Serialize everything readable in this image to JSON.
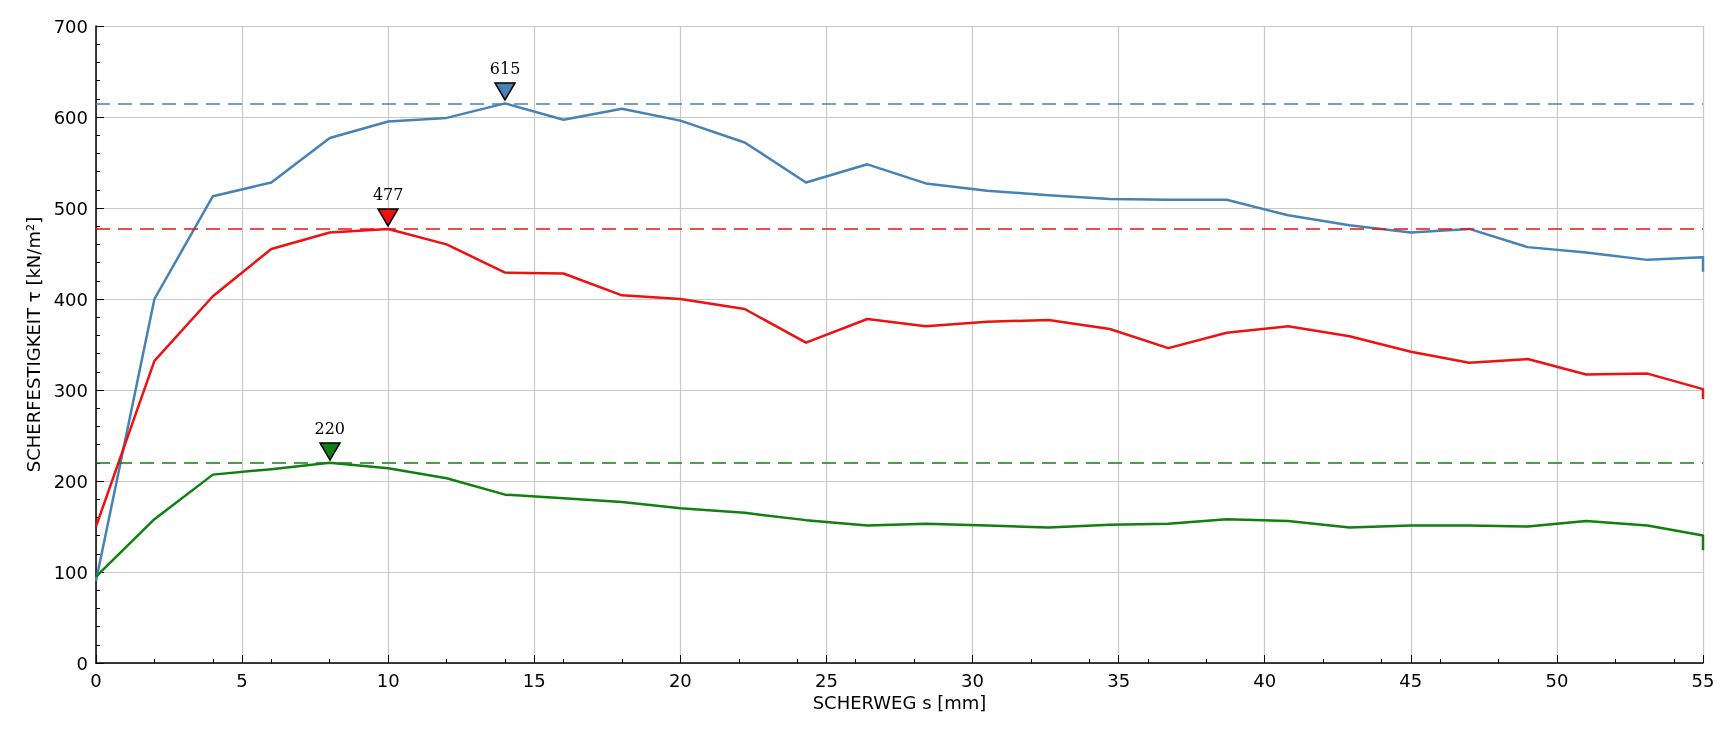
{
  "chart_data": {
    "type": "line",
    "xlabel": "SCHERWEG s [mm]",
    "ylabel": "SCHERFESTIGKEIT τ [kN/m²]",
    "xlim": [
      0,
      55
    ],
    "xticks": [
      0,
      5,
      10,
      15,
      20,
      25,
      30,
      35,
      40,
      45,
      50,
      55
    ],
    "ylim": [
      0,
      700
    ],
    "yticks": [
      0,
      100,
      200,
      300,
      400,
      500,
      600,
      700
    ],
    "grid": true,
    "marker": "none",
    "line_style": "solid",
    "series": [
      {
        "color": "#4682b4",
        "x": [
          0,
          2,
          4,
          6,
          8,
          10,
          12,
          14,
          16,
          18,
          20,
          22.2,
          24.3,
          26.4,
          28.4,
          30.5,
          32.6,
          34.7,
          36.7,
          38.7,
          40.8,
          42.9,
          45,
          47,
          49,
          51,
          53.1,
          55,
          55
        ],
        "values": [
          90,
          400,
          513,
          528,
          577,
          595,
          599,
          615,
          597,
          609,
          596,
          572,
          528,
          548,
          527,
          519,
          514,
          510,
          509,
          509,
          492,
          481,
          473,
          477,
          457,
          451,
          443,
          446,
          430
        ]
      },
      {
        "color": "#ee1111",
        "x": [
          0,
          2,
          4,
          6,
          8,
          10,
          12,
          14,
          16,
          18,
          20,
          22.2,
          24.3,
          26.4,
          28.4,
          30.5,
          32.6,
          34.7,
          36.7,
          38.7,
          40.8,
          42.9,
          45,
          47,
          49,
          51,
          53.1,
          55,
          55
        ],
        "values": [
          150,
          332,
          403,
          455,
          473,
          477,
          460,
          429,
          428,
          404,
          400,
          389,
          352,
          378,
          370,
          375,
          377,
          367,
          346,
          363,
          370,
          359,
          342,
          330,
          334,
          317,
          318,
          301,
          290
        ]
      },
      {
        "color": "#118011",
        "x": [
          0,
          2,
          4,
          6,
          8,
          10,
          12,
          14,
          16,
          18,
          20,
          22.2,
          24.3,
          26.4,
          28.4,
          30.5,
          32.6,
          34.7,
          36.7,
          38.7,
          40.8,
          42.9,
          45,
          47,
          49,
          51,
          53.1,
          55,
          55
        ],
        "values": [
          95,
          158,
          207,
          213,
          220,
          214,
          203,
          185,
          181,
          177,
          170,
          165,
          157,
          151,
          153,
          151,
          149,
          152,
          153,
          158,
          156,
          149,
          151,
          151,
          150,
          156,
          151,
          140,
          124
        ]
      }
    ],
    "ref_lines": [
      {
        "axis": "y",
        "value": 615,
        "color": "#4682b4",
        "line_style": "dashed"
      },
      {
        "axis": "y",
        "value": 477,
        "color": "#ee1111",
        "line_style": "dashed"
      },
      {
        "axis": "y",
        "value": 220,
        "color": "#118011",
        "line_style": "dashed"
      }
    ],
    "annotations": [
      {
        "text": "615",
        "x": 14,
        "y": 615
      },
      {
        "text": "477",
        "x": 10,
        "y": 477
      },
      {
        "text": "220",
        "x": 8,
        "y": 220
      }
    ]
  }
}
